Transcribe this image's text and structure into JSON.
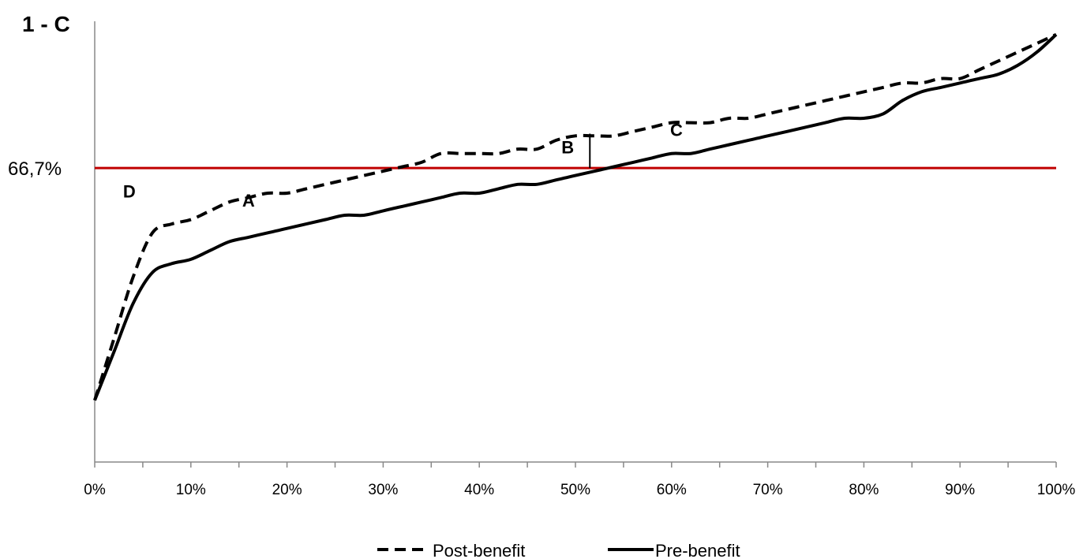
{
  "chart_data": {
    "type": "line",
    "title": "",
    "xlabel": "",
    "ylabel": "1 - C",
    "xlim": [
      0,
      100
    ],
    "x_ticks": [
      "0%",
      "10%",
      "20%",
      "30%",
      "40%",
      "50%",
      "60%",
      "70%",
      "80%",
      "90%",
      "100%"
    ],
    "reference_line": {
      "label": "66,7%",
      "value": 66.7,
      "color": "#c00000"
    },
    "annotations": [
      {
        "text": "A",
        "x": 16,
        "y": 58
      },
      {
        "text": "B",
        "x": 49.2,
        "y": 70
      },
      {
        "text": "C",
        "x": 60.5,
        "y": 74
      },
      {
        "text": "D",
        "x": 3.6,
        "y": 60
      }
    ],
    "marker_segment": {
      "x": 51.5,
      "y_from": 66.7,
      "y_to": 74.5
    },
    "legend": {
      "placement": "bottom"
    },
    "series": [
      {
        "name": "Post-benefit",
        "style": "dashed",
        "x": [
          0,
          2,
          4,
          6,
          8,
          10,
          12,
          14,
          16,
          18,
          20,
          22,
          24,
          26,
          28,
          30,
          32,
          34,
          36,
          38,
          40,
          42,
          44,
          46,
          48,
          50,
          52,
          54,
          56,
          58,
          60,
          62,
          64,
          66,
          68,
          70,
          72,
          74,
          76,
          78,
          80,
          82,
          84,
          86,
          88,
          90,
          92,
          94,
          96,
          98,
          100
        ],
        "y": [
          14,
          28,
          42,
          52,
          54,
          55,
          57,
          59,
          60,
          61,
          61,
          62,
          63,
          64,
          65,
          66,
          67,
          68,
          70,
          70,
          70,
          70,
          71,
          71,
          73,
          74,
          74,
          74,
          75,
          76,
          77,
          77,
          77,
          78,
          78,
          79,
          80,
          81,
          82,
          83,
          84,
          85,
          86,
          86,
          87,
          87,
          89,
          91,
          93,
          95,
          97
        ]
      },
      {
        "name": "Pre-benefit",
        "style": "solid",
        "x": [
          0,
          2,
          4,
          6,
          8,
          10,
          12,
          14,
          16,
          18,
          20,
          22,
          24,
          26,
          28,
          30,
          32,
          34,
          36,
          38,
          40,
          42,
          44,
          46,
          48,
          50,
          52,
          54,
          56,
          58,
          60,
          62,
          64,
          66,
          68,
          70,
          72,
          74,
          76,
          78,
          80,
          82,
          84,
          86,
          88,
          90,
          92,
          94,
          96,
          98,
          100
        ],
        "y": [
          14,
          25,
          36,
          43,
          45,
          46,
          48,
          50,
          51,
          52,
          53,
          54,
          55,
          56,
          56,
          57,
          58,
          59,
          60,
          61,
          61,
          62,
          63,
          63,
          64,
          65,
          66,
          67,
          68,
          69,
          70,
          70,
          71,
          72,
          73,
          74,
          75,
          76,
          77,
          78,
          78,
          79,
          82,
          84,
          85,
          86,
          87,
          88,
          90,
          93,
          97
        ]
      }
    ]
  }
}
